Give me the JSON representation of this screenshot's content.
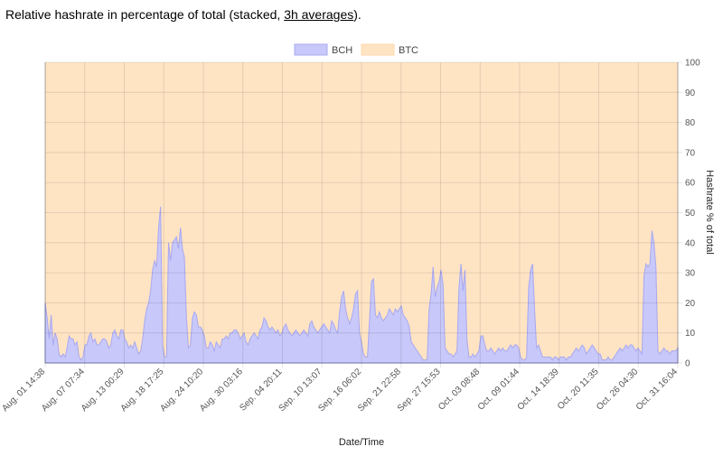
{
  "header": {
    "title_prefix": "Relative hashrate in percentage of total (stacked, ",
    "title_link": "3h averages",
    "title_suffix": ")."
  },
  "chart_data": {
    "type": "area",
    "stacked": true,
    "xlabel": "Date/Time",
    "ylabel": "Hashrate % of total",
    "ylim": [
      0,
      100
    ],
    "yticks": [
      0,
      10,
      20,
      30,
      40,
      50,
      60,
      70,
      80,
      90,
      100
    ],
    "y_axis_side": "right",
    "grid": true,
    "legend_position": "top-center",
    "x_tick_labels": [
      "Aug. 01 14:38",
      "Aug. 07 07:34",
      "Aug. 13 00:29",
      "Aug. 18 17:25",
      "Aug. 24 10:20",
      "Aug. 30 03:16",
      "Sep. 04 20:11",
      "Sep. 10 13:07",
      "Sep. 16 06:02",
      "Sep. 21 22:58",
      "Sep. 27 15:53",
      "Oct. 03 08:48",
      "Oct. 09 01:44",
      "Oct. 14 18:39",
      "Oct. 20 11:35",
      "Oct. 26 04:30",
      "Oct. 31 16:04"
    ],
    "series": [
      {
        "name": "BCH",
        "color": "#c8c8fa",
        "line_color": "#a8a8f0",
        "values": [
          20,
          15,
          8,
          16,
          6,
          10,
          8,
          3,
          2,
          3,
          2,
          5,
          9,
          8,
          8,
          6,
          7,
          2,
          1,
          2,
          6,
          6,
          9,
          10,
          7,
          8,
          6,
          6,
          7,
          8,
          8,
          7,
          5,
          6,
          10,
          11,
          9,
          8,
          11,
          11,
          8,
          7,
          5,
          6,
          5,
          7,
          5,
          3,
          4,
          8,
          14,
          18,
          20,
          24,
          31,
          34,
          32,
          45,
          52,
          6,
          2,
          2,
          40,
          34,
          40,
          41,
          42,
          38,
          45,
          38,
          35,
          15,
          5,
          6,
          15,
          17,
          16,
          12,
          12,
          11,
          9,
          5,
          5,
          7,
          6,
          4,
          7,
          6,
          5,
          8,
          8,
          9,
          8,
          10,
          10,
          11,
          11,
          10,
          8,
          9,
          10,
          7,
          6,
          8,
          9,
          10,
          9,
          8,
          11,
          12,
          15,
          14,
          12,
          11,
          12,
          11,
          10,
          11,
          9,
          10,
          12,
          13,
          11,
          10,
          9,
          10,
          11,
          10,
          9,
          10,
          11,
          10,
          9,
          13,
          14,
          12,
          11,
          10,
          11,
          12,
          13,
          12,
          11,
          10,
          14,
          13,
          11,
          10,
          17,
          22,
          24,
          18,
          15,
          13,
          15,
          18,
          23,
          24,
          10,
          7,
          3,
          2,
          2,
          14,
          27,
          28,
          16,
          15,
          17,
          15,
          14,
          15,
          16,
          18,
          17,
          16,
          18,
          17,
          18,
          19,
          16,
          15,
          14,
          12,
          7,
          6,
          5,
          4,
          3,
          2,
          1,
          1,
          1,
          18,
          23,
          32,
          22,
          25,
          27,
          31,
          26,
          5,
          4,
          3,
          3,
          2,
          3,
          4,
          25,
          33,
          24,
          31,
          8,
          2,
          2,
          3,
          2,
          3,
          4,
          9,
          9,
          6,
          4,
          4,
          5,
          4,
          3,
          4,
          5,
          4,
          5,
          4,
          4,
          5,
          6,
          5,
          6,
          6,
          5,
          2,
          1,
          1,
          2,
          25,
          31,
          33,
          18,
          5,
          6,
          4,
          2,
          2,
          2,
          2,
          2,
          1,
          2,
          2,
          1,
          2,
          2,
          2,
          1,
          2,
          2,
          3,
          4,
          5,
          4,
          5,
          6,
          5,
          3,
          4,
          5,
          6,
          5,
          4,
          3,
          3,
          1,
          1,
          1,
          2,
          1,
          1,
          2,
          3,
          4,
          5,
          4,
          5,
          6,
          5,
          6,
          6,
          5,
          4,
          5,
          4,
          3,
          29,
          33,
          32,
          33,
          44,
          40,
          32,
          4,
          3,
          4,
          5,
          4,
          4,
          3,
          4,
          4,
          4,
          5
        ]
      },
      {
        "name": "BTC",
        "color": "#ffe4c4",
        "line_color": "#ffd8a8",
        "values_note": ""
      }
    ]
  }
}
